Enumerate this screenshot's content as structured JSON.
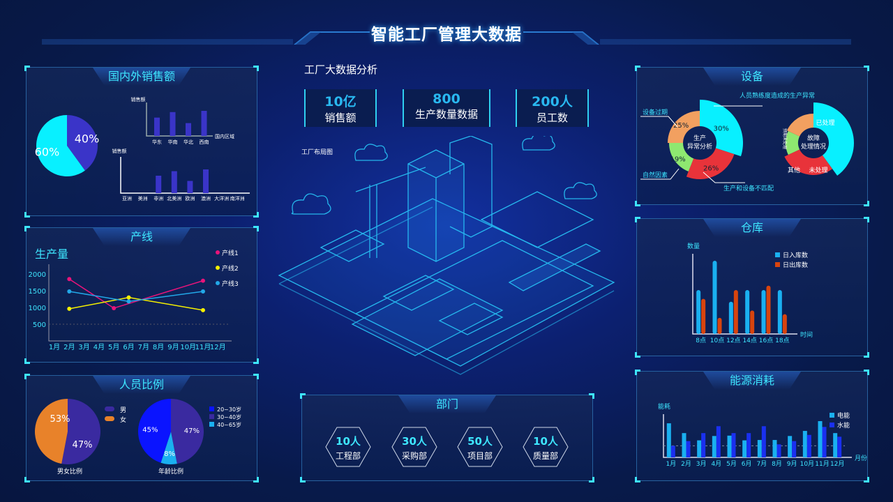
{
  "header": {
    "title": "智能工厂管理大数据"
  },
  "colors": {
    "accent": "#3ee6ff",
    "cyan": "#08f0ff",
    "purple": "#3a34c8",
    "background": "#081a4a"
  },
  "sales": {
    "title": "国内外销售额",
    "pie": [
      {
        "label": "40%",
        "value": 40,
        "color": "#3a34c8"
      },
      {
        "label": "60%",
        "value": 60,
        "color": "#08f0ff"
      }
    ],
    "domestic": {
      "ylabel": "销售额",
      "xlabel": "国内区域",
      "categories": [
        "华东",
        "华南",
        "华北",
        "西南"
      ],
      "values": [
        60,
        78,
        42,
        82
      ]
    },
    "international": {
      "ylabel": "销售额",
      "categories": [
        "亚洲",
        "美洲",
        "非洲",
        "北美洲",
        "欧洲",
        "澳洲",
        "大洋洲",
        "南洋洲"
      ],
      "values": [
        0,
        0,
        50,
        63,
        35,
        68,
        0,
        0
      ]
    }
  },
  "production": {
    "title": "产线",
    "chart_title": "生产量",
    "months": [
      "1月",
      "2月",
      "3月",
      "4月",
      "5月",
      "6月",
      "7月",
      "8月",
      "9月",
      "10月",
      "11月",
      "12月"
    ],
    "yticks": [
      500,
      1000,
      1500,
      2000
    ],
    "series": [
      {
        "name": "产线1",
        "color": "#e8147a",
        "points": [
          [
            2,
            1850
          ],
          [
            5,
            980
          ],
          [
            11,
            1800
          ]
        ]
      },
      {
        "name": "产线2",
        "color": "#f5f000",
        "points": [
          [
            2,
            960
          ],
          [
            6,
            1300
          ],
          [
            11,
            920
          ]
        ]
      },
      {
        "name": "产线3",
        "color": "#22a8e8",
        "points": [
          [
            2,
            1480
          ],
          [
            6,
            1180
          ],
          [
            11,
            1480
          ]
        ]
      }
    ]
  },
  "personnel": {
    "title": "人员比例",
    "gender": {
      "caption": "男女比例",
      "slices": [
        {
          "name": "男",
          "label": "53%",
          "value": 53,
          "color": "#3a2aa0"
        },
        {
          "name": "女",
          "label": "47%",
          "value": 47,
          "color": "#e8822a"
        }
      ]
    },
    "age": {
      "caption": "年龄比例",
      "slices": [
        {
          "name": "30~40岁",
          "label": "47%",
          "value": 47,
          "color": "#3a2aa0"
        },
        {
          "name": "40~65岁",
          "label": "8%",
          "value": 8,
          "color": "#1ab0f0"
        },
        {
          "name": "20~30岁",
          "label": "45%",
          "value": 45,
          "color": "#0a14ff"
        }
      ],
      "legend": [
        {
          "name": "20~30岁",
          "color": "#0a14ff"
        },
        {
          "name": "30~40岁",
          "color": "#3a2aa0"
        },
        {
          "name": "40~65岁",
          "color": "#1ab0f0"
        }
      ]
    }
  },
  "center": {
    "heading": "工厂大数据分析",
    "kpis": [
      {
        "value": "10亿",
        "label": "销售额"
      },
      {
        "value": "800",
        "label": "生产数量数据"
      },
      {
        "value": "200人",
        "label": "员工数"
      }
    ],
    "layout_label": "工厂布局图"
  },
  "departments": {
    "title": "部门",
    "items": [
      {
        "value": "10人",
        "label": "工程部"
      },
      {
        "value": "30人",
        "label": "采购部"
      },
      {
        "value": "50人",
        "label": "项目部"
      },
      {
        "value": "10人",
        "label": "质量部"
      }
    ]
  },
  "equipment": {
    "title": "设备",
    "anomaly": {
      "center": [
        "生产",
        "异常分析"
      ],
      "slices": [
        {
          "name": "人员熟练度造成的生产异常",
          "label": "30%",
          "value": 30,
          "color": "#08f0ff"
        },
        {
          "name": "生产和设备不匹配",
          "label": "26%",
          "value": 26,
          "color": "#e8333a"
        },
        {
          "name": "自然因素",
          "label": "19%",
          "value": 19,
          "color": "#8ee870"
        },
        {
          "name": "设备过期",
          "label": "25%",
          "value": 25,
          "color": "#f2a060"
        }
      ]
    },
    "fault": {
      "center": [
        "故障",
        "处理情况"
      ],
      "slices": [
        {
          "name": "已处理",
          "value": 40,
          "color": "#08f0ff"
        },
        {
          "name": "未处理",
          "value": 28,
          "color": "#e8333a"
        },
        {
          "name": "其他",
          "value": 14,
          "color": "#8ee870"
        },
        {
          "name": "预期未处理",
          "value": 18,
          "color": "#f2a060"
        }
      ]
    }
  },
  "warehouse": {
    "title": "仓库",
    "chart_data": {
      "type": "bar",
      "ylabel": "数量",
      "xlabel": "时间",
      "categories": [
        "8点",
        "10点",
        "12点",
        "14点",
        "16点",
        "18点"
      ],
      "series": [
        {
          "name": "日入库数",
          "color": "#1ab0f0",
          "values": [
            60,
            100,
            44,
            60,
            60,
            60
          ]
        },
        {
          "name": "日出库数",
          "color": "#d8440e",
          "values": [
            48,
            22,
            60,
            32,
            66,
            27
          ]
        }
      ]
    }
  },
  "energy": {
    "title": "能源消耗",
    "chart_data": {
      "type": "bar",
      "ylabel": "能耗",
      "xlabel": "月份",
      "categories": [
        "1月",
        "2月",
        "3月",
        "4月",
        "5月",
        "6月",
        "7月",
        "8月",
        "9月",
        "10月",
        "11月",
        "12月"
      ],
      "series": [
        {
          "name": "电能",
          "color": "#1ab0f0",
          "values": [
            94,
            67,
            47,
            59,
            60,
            47,
            48,
            48,
            59,
            73,
            100,
            67
          ]
        },
        {
          "name": "水能",
          "color": "#1a30f0",
          "values": [
            32,
            45,
            67,
            86,
            67,
            67,
            86,
            36,
            45,
            62,
            84,
            57
          ]
        }
      ],
      "reference_line": 32
    }
  }
}
